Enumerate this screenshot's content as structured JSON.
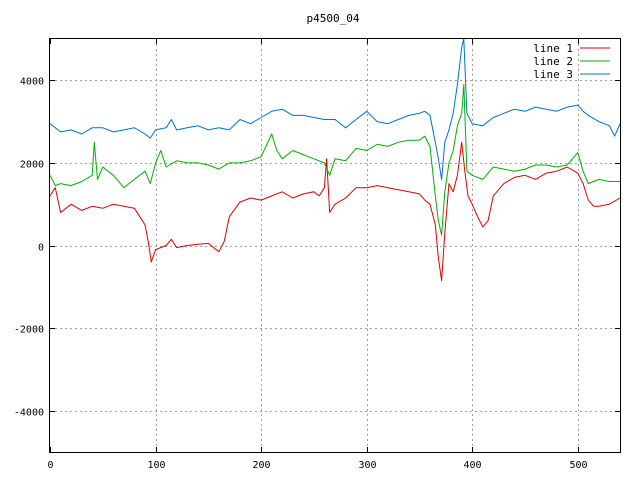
{
  "chart_data": {
    "type": "line",
    "title": "p4500_04",
    "xlabel": "",
    "ylabel": "",
    "xlim": [
      0,
      540
    ],
    "ylim": [
      -5000,
      5000
    ],
    "xticks": [
      0,
      100,
      200,
      300,
      400,
      500
    ],
    "yticks": [
      -4000,
      -2000,
      0,
      2000,
      4000
    ],
    "grid": true,
    "legend_position": "top-right",
    "series": [
      {
        "name": "line 1",
        "color": "#e00000",
        "points": [
          [
            0,
            1200
          ],
          [
            5,
            1400
          ],
          [
            10,
            800
          ],
          [
            20,
            1000
          ],
          [
            30,
            850
          ],
          [
            40,
            950
          ],
          [
            50,
            900
          ],
          [
            60,
            1000
          ],
          [
            70,
            950
          ],
          [
            80,
            900
          ],
          [
            90,
            500
          ],
          [
            93,
            100
          ],
          [
            96,
            -400
          ],
          [
            100,
            -100
          ],
          [
            110,
            0
          ],
          [
            115,
            150
          ],
          [
            120,
            -50
          ],
          [
            130,
            0
          ],
          [
            140,
            30
          ],
          [
            150,
            50
          ],
          [
            155,
            -50
          ],
          [
            160,
            -150
          ],
          [
            165,
            100
          ],
          [
            170,
            700
          ],
          [
            180,
            1050
          ],
          [
            190,
            1150
          ],
          [
            200,
            1100
          ],
          [
            210,
            1200
          ],
          [
            220,
            1300
          ],
          [
            230,
            1150
          ],
          [
            240,
            1250
          ],
          [
            250,
            1300
          ],
          [
            255,
            1200
          ],
          [
            260,
            1400
          ],
          [
            262,
            2100
          ],
          [
            265,
            800
          ],
          [
            270,
            1000
          ],
          [
            280,
            1150
          ],
          [
            290,
            1400
          ],
          [
            300,
            1400
          ],
          [
            310,
            1450
          ],
          [
            320,
            1400
          ],
          [
            330,
            1350
          ],
          [
            340,
            1300
          ],
          [
            350,
            1250
          ],
          [
            355,
            1100
          ],
          [
            360,
            1000
          ],
          [
            365,
            500
          ],
          [
            368,
            -300
          ],
          [
            371,
            -850
          ],
          [
            374,
            300
          ],
          [
            378,
            1500
          ],
          [
            382,
            1300
          ],
          [
            386,
            1700
          ],
          [
            390,
            2500
          ],
          [
            393,
            1800
          ],
          [
            396,
            1200
          ],
          [
            400,
            1000
          ],
          [
            405,
            700
          ],
          [
            410,
            450
          ],
          [
            415,
            600
          ],
          [
            420,
            1200
          ],
          [
            430,
            1500
          ],
          [
            440,
            1650
          ],
          [
            450,
            1700
          ],
          [
            460,
            1600
          ],
          [
            470,
            1750
          ],
          [
            480,
            1800
          ],
          [
            490,
            1900
          ],
          [
            500,
            1750
          ],
          [
            505,
            1500
          ],
          [
            510,
            1100
          ],
          [
            515,
            950
          ],
          [
            520,
            950
          ],
          [
            530,
            1000
          ],
          [
            540,
            1150
          ]
        ]
      },
      {
        "name": "line 2",
        "color": "#00b000",
        "points": [
          [
            0,
            1700
          ],
          [
            5,
            1450
          ],
          [
            10,
            1500
          ],
          [
            20,
            1450
          ],
          [
            30,
            1550
          ],
          [
            40,
            1700
          ],
          [
            42,
            2500
          ],
          [
            45,
            1600
          ],
          [
            50,
            1900
          ],
          [
            60,
            1700
          ],
          [
            70,
            1400
          ],
          [
            80,
            1600
          ],
          [
            90,
            1800
          ],
          [
            95,
            1500
          ],
          [
            100,
            2000
          ],
          [
            105,
            2300
          ],
          [
            110,
            1900
          ],
          [
            120,
            2050
          ],
          [
            130,
            2000
          ],
          [
            140,
            2000
          ],
          [
            150,
            1950
          ],
          [
            160,
            1850
          ],
          [
            170,
            2000
          ],
          [
            180,
            2000
          ],
          [
            190,
            2050
          ],
          [
            200,
            2150
          ],
          [
            210,
            2700
          ],
          [
            215,
            2300
          ],
          [
            220,
            2100
          ],
          [
            230,
            2300
          ],
          [
            240,
            2200
          ],
          [
            250,
            2100
          ],
          [
            260,
            2000
          ],
          [
            265,
            1700
          ],
          [
            270,
            2100
          ],
          [
            280,
            2050
          ],
          [
            290,
            2350
          ],
          [
            300,
            2300
          ],
          [
            310,
            2450
          ],
          [
            320,
            2400
          ],
          [
            330,
            2500
          ],
          [
            340,
            2550
          ],
          [
            350,
            2550
          ],
          [
            355,
            2650
          ],
          [
            360,
            2400
          ],
          [
            365,
            1200
          ],
          [
            368,
            600
          ],
          [
            371,
            250
          ],
          [
            374,
            1300
          ],
          [
            378,
            2000
          ],
          [
            382,
            2300
          ],
          [
            386,
            2900
          ],
          [
            390,
            3200
          ],
          [
            392,
            3900
          ],
          [
            395,
            1800
          ],
          [
            400,
            1700
          ],
          [
            410,
            1600
          ],
          [
            420,
            1900
          ],
          [
            430,
            1850
          ],
          [
            440,
            1800
          ],
          [
            450,
            1850
          ],
          [
            460,
            1950
          ],
          [
            470,
            1950
          ],
          [
            480,
            1900
          ],
          [
            490,
            1950
          ],
          [
            500,
            2250
          ],
          [
            505,
            1800
          ],
          [
            510,
            1500
          ],
          [
            520,
            1600
          ],
          [
            530,
            1550
          ],
          [
            540,
            1550
          ]
        ]
      },
      {
        "name": "line 3",
        "color": "#0070d0",
        "points": [
          [
            0,
            2950
          ],
          [
            10,
            2750
          ],
          [
            20,
            2800
          ],
          [
            30,
            2700
          ],
          [
            40,
            2850
          ],
          [
            50,
            2850
          ],
          [
            60,
            2750
          ],
          [
            70,
            2800
          ],
          [
            80,
            2850
          ],
          [
            90,
            2700
          ],
          [
            95,
            2600
          ],
          [
            100,
            2800
          ],
          [
            110,
            2850
          ],
          [
            115,
            3050
          ],
          [
            120,
            2800
          ],
          [
            130,
            2850
          ],
          [
            140,
            2900
          ],
          [
            150,
            2800
          ],
          [
            160,
            2850
          ],
          [
            170,
            2800
          ],
          [
            180,
            3050
          ],
          [
            190,
            2950
          ],
          [
            200,
            3100
          ],
          [
            210,
            3250
          ],
          [
            220,
            3300
          ],
          [
            230,
            3150
          ],
          [
            240,
            3150
          ],
          [
            250,
            3100
          ],
          [
            260,
            3050
          ],
          [
            270,
            3050
          ],
          [
            280,
            2850
          ],
          [
            290,
            3050
          ],
          [
            300,
            3250
          ],
          [
            310,
            3000
          ],
          [
            320,
            2950
          ],
          [
            330,
            3050
          ],
          [
            340,
            3150
          ],
          [
            350,
            3200
          ],
          [
            355,
            3250
          ],
          [
            360,
            3150
          ],
          [
            365,
            2500
          ],
          [
            368,
            2100
          ],
          [
            371,
            1600
          ],
          [
            374,
            2500
          ],
          [
            378,
            2800
          ],
          [
            382,
            3200
          ],
          [
            386,
            3900
          ],
          [
            390,
            4800
          ],
          [
            392,
            5000
          ],
          [
            395,
            3200
          ],
          [
            400,
            2950
          ],
          [
            410,
            2900
          ],
          [
            420,
            3100
          ],
          [
            430,
            3200
          ],
          [
            440,
            3300
          ],
          [
            450,
            3250
          ],
          [
            460,
            3350
          ],
          [
            470,
            3300
          ],
          [
            480,
            3250
          ],
          [
            490,
            3350
          ],
          [
            500,
            3400
          ],
          [
            505,
            3250
          ],
          [
            510,
            3150
          ],
          [
            520,
            3000
          ],
          [
            530,
            2900
          ],
          [
            535,
            2650
          ],
          [
            540,
            2950
          ]
        ]
      }
    ]
  }
}
